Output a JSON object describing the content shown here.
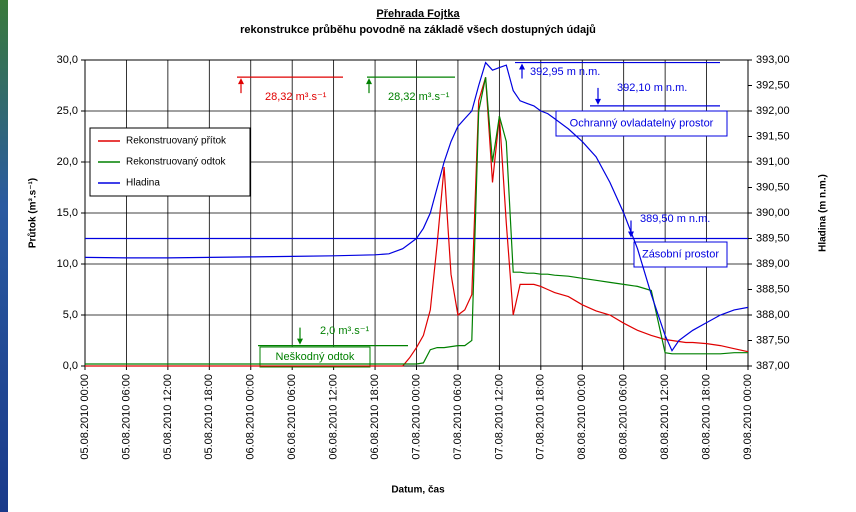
{
  "chart_data": {
    "type": "line",
    "title": "Přehrada Fojtka",
    "subtitle": "rekonstrukce průběhu povodně na základě všech dostupných údajů",
    "xlabel": "Datum, čas",
    "ylabel": "Průtok (m³.s⁻¹)",
    "y2label": "Hladina (m n.m.)",
    "xlim": [
      "2010-08-05T00:00",
      "2010-08-09T00:00"
    ],
    "xticks": [
      {
        "value": "2010-08-05T00:00",
        "label": "05.08.2010 00:00"
      },
      {
        "value": "2010-08-05T06:00",
        "label": "05.08.2010 06:00"
      },
      {
        "value": "2010-08-05T12:00",
        "label": "05.08.2010 12:00"
      },
      {
        "value": "2010-08-05T18:00",
        "label": "05.08.2010 18:00"
      },
      {
        "value": "2010-08-06T00:00",
        "label": "06.08.2010 00:00"
      },
      {
        "value": "2010-08-06T06:00",
        "label": "06.08.2010 06:00"
      },
      {
        "value": "2010-08-06T12:00",
        "label": "06.08.2010 12:00"
      },
      {
        "value": "2010-08-06T18:00",
        "label": "06.08.2010 18:00"
      },
      {
        "value": "2010-08-07T00:00",
        "label": "07.08.2010 00:00"
      },
      {
        "value": "2010-08-07T06:00",
        "label": "07.08.2010 06:00"
      },
      {
        "value": "2010-08-07T12:00",
        "label": "07.08.2010 12:00"
      },
      {
        "value": "2010-08-07T18:00",
        "label": "07.08.2010 18:00"
      },
      {
        "value": "2010-08-08T00:00",
        "label": "08.08.2010 00:00"
      },
      {
        "value": "2010-08-08T06:00",
        "label": "08.08.2010 06:00"
      },
      {
        "value": "2010-08-08T12:00",
        "label": "08.08.2010 12:00"
      },
      {
        "value": "2010-08-08T18:00",
        "label": "08.08.2010 18:00"
      },
      {
        "value": "2010-08-09T00:00",
        "label": "09.08.2010 00:00"
      }
    ],
    "ylim": [
      0,
      30
    ],
    "yticks": [
      {
        "value": 0,
        "label": "0,0"
      },
      {
        "value": 5,
        "label": "5,0"
      },
      {
        "value": 10,
        "label": "10,0"
      },
      {
        "value": 15,
        "label": "15,0"
      },
      {
        "value": 20,
        "label": "20,0"
      },
      {
        "value": 25,
        "label": "25,0"
      },
      {
        "value": 30,
        "label": "30,0"
      }
    ],
    "y2lim": [
      387,
      393
    ],
    "y2ticks": [
      {
        "value": 387,
        "label": "387,00"
      },
      {
        "value": 387.5,
        "label": "387,50"
      },
      {
        "value": 388,
        "label": "388,00"
      },
      {
        "value": 388.5,
        "label": "388,50"
      },
      {
        "value": 389,
        "label": "389,00"
      },
      {
        "value": 389.5,
        "label": "389,50"
      },
      {
        "value": 390,
        "label": "390,00"
      },
      {
        "value": 390.5,
        "label": "390,50"
      },
      {
        "value": 391,
        "label": "391,00"
      },
      {
        "value": 391.5,
        "label": "391,50"
      },
      {
        "value": 392,
        "label": "392,00"
      },
      {
        "value": 392.5,
        "label": "392,50"
      },
      {
        "value": 393,
        "label": "393,00"
      }
    ],
    "grid": true,
    "legend": "upper left",
    "x": [
      "2010-08-05T00:00",
      "2010-08-05T06:00",
      "2010-08-05T12:00",
      "2010-08-05T18:00",
      "2010-08-06T00:00",
      "2010-08-06T06:00",
      "2010-08-06T12:00",
      "2010-08-06T18:00",
      "2010-08-06T20:00",
      "2010-08-06T22:00",
      "2010-08-06T23:00",
      "2010-08-07T00:00",
      "2010-08-07T01:00",
      "2010-08-07T02:00",
      "2010-08-07T03:00",
      "2010-08-07T04:00",
      "2010-08-07T05:00",
      "2010-08-07T06:00",
      "2010-08-07T07:00",
      "2010-08-07T08:00",
      "2010-08-07T09:00",
      "2010-08-07T10:00",
      "2010-08-07T11:00",
      "2010-08-07T12:00",
      "2010-08-07T13:00",
      "2010-08-07T14:00",
      "2010-08-07T15:00",
      "2010-08-07T16:00",
      "2010-08-07T17:00",
      "2010-08-07T18:00",
      "2010-08-07T19:00",
      "2010-08-07T20:00",
      "2010-08-07T22:00",
      "2010-08-08T00:00",
      "2010-08-08T02:00",
      "2010-08-08T04:00",
      "2010-08-08T06:00",
      "2010-08-08T08:00",
      "2010-08-08T10:00",
      "2010-08-08T12:00",
      "2010-08-08T13:00",
      "2010-08-08T14:00",
      "2010-08-08T15:00",
      "2010-08-08T16:00",
      "2010-08-08T18:00",
      "2010-08-08T20:00",
      "2010-08-08T22:00",
      "2010-08-09T00:00"
    ],
    "series": [
      {
        "name": "Rekonstruovaný přítok",
        "color": "#e00000",
        "values": [
          0,
          0,
          0,
          0,
          0,
          0,
          0,
          0,
          0,
          0,
          0.8,
          1.8,
          3,
          5.5,
          12,
          19.5,
          9,
          5,
          5.5,
          7,
          26,
          28.3,
          18,
          24.5,
          14,
          5,
          8,
          8,
          8,
          7.8,
          7.5,
          7.2,
          6.8,
          6,
          5.4,
          5,
          4.2,
          3.5,
          3,
          2.6,
          2.5,
          2.4,
          2.3,
          2.3,
          2.2,
          2,
          1.7,
          1.4
        ]
      },
      {
        "name": "Rekonstruovaný odtok",
        "color": "#008000",
        "values": [
          0.2,
          0.2,
          0.2,
          0.2,
          0.2,
          0.2,
          0.2,
          0.2,
          0.2,
          0.2,
          0.2,
          0.2,
          0.3,
          1.6,
          1.8,
          1.8,
          1.9,
          2,
          2,
          2.5,
          25,
          28.3,
          20,
          24.5,
          22,
          9.2,
          9.2,
          9.1,
          9.1,
          9,
          9,
          8.9,
          8.8,
          8.6,
          8.4,
          8.2,
          8,
          7.8,
          7.4,
          1.3,
          1.2,
          1.2,
          1.2,
          1.2,
          1.2,
          1.2,
          1.3,
          1.3
        ]
      },
      {
        "name": "Hladina",
        "color": "#0000e0",
        "axis": "y2",
        "values": [
          389.13,
          389.12,
          389.12,
          389.13,
          389.14,
          389.15,
          389.16,
          389.18,
          389.2,
          389.3,
          389.4,
          389.5,
          389.7,
          390,
          390.5,
          391,
          391.4,
          391.7,
          391.85,
          392,
          392.5,
          392.95,
          392.8,
          392.85,
          392.9,
          392.4,
          392.2,
          392.15,
          392.1,
          392,
          391.95,
          391.85,
          391.65,
          391.4,
          391.1,
          390.6,
          390,
          389.3,
          388.4,
          387.6,
          387.3,
          387.5,
          387.6,
          387.7,
          387.85,
          388,
          388.1,
          388.15
        ]
      }
    ],
    "annotations": [
      {
        "text": "28,32 m³.s⁻¹",
        "value": 28.32,
        "axis": "y",
        "color": "#e00000"
      },
      {
        "text": "28,32 m³.s⁻¹",
        "value": 28.32,
        "axis": "y",
        "color": "#008000"
      },
      {
        "text": "392,95 m n.m.",
        "value": 392.95,
        "axis": "y2",
        "color": "#0000e0"
      },
      {
        "text": "392,10 m n.m.",
        "value": 392.1,
        "axis": "y2",
        "color": "#0000e0"
      },
      {
        "text": "389,50 m n.m.",
        "value": 389.5,
        "axis": "y2",
        "color": "#0000e0"
      },
      {
        "text": "2,0 m³.s⁻¹",
        "value": 2.0,
        "axis": "y",
        "color": "#008000"
      }
    ],
    "boxes": [
      {
        "text": "Ochranný ovladatelný prostor",
        "color": "#0000e0"
      },
      {
        "text": "Zásobní prostor",
        "color": "#0000e0"
      },
      {
        "text": "Neškodný odtok",
        "color": "#008000"
      }
    ]
  }
}
